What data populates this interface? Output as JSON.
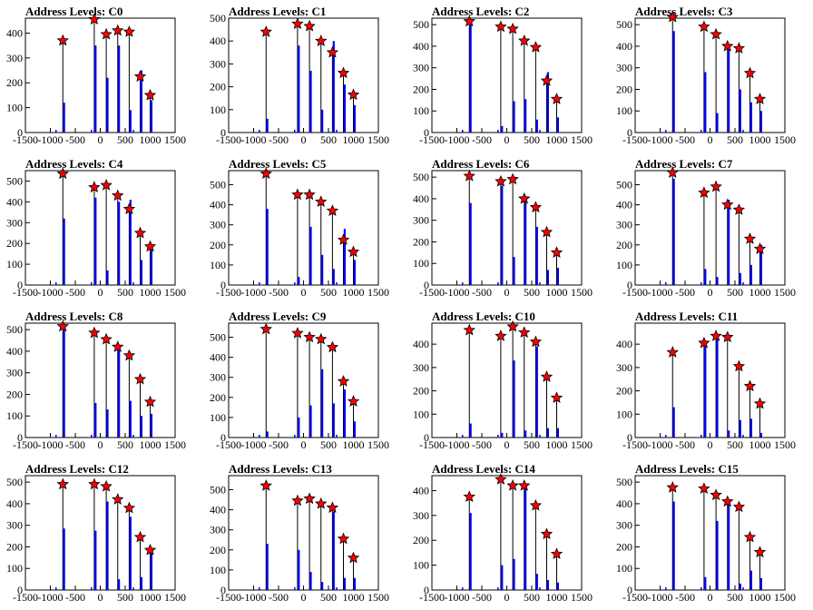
{
  "chart_data": {
    "type": "bar",
    "layout": "4x4 grid of histograms",
    "xlim": [
      -1500,
      1500
    ],
    "x_ticks": [
      -1500,
      -1000,
      -500,
      0,
      500,
      1000,
      1500
    ],
    "peak_x": [
      -750,
      -120,
      120,
      350,
      580,
      800,
      1000
    ],
    "colors": {
      "histogram": "#0000ff",
      "envelope": "#000000",
      "marker": "#ff0000",
      "marker_edge": "#000000"
    },
    "panels": [
      {
        "title": "Address Levels: C0",
        "ylim": [
          0,
          460
        ],
        "y_ticks": [
          0,
          100,
          200,
          300,
          400
        ],
        "peaks": [
          370,
          455,
          395,
          410,
          405,
          225,
          150
        ],
        "heights": [
          120,
          350,
          220,
          350,
          90,
          250,
          130
        ]
      },
      {
        "title": "Address Levels: C1",
        "ylim": [
          0,
          500
        ],
        "y_ticks": [
          0,
          100,
          200,
          300,
          400,
          500
        ],
        "peaks": [
          440,
          475,
          465,
          400,
          350,
          260,
          165
        ],
        "heights": [
          60,
          380,
          270,
          100,
          400,
          210,
          120
        ]
      },
      {
        "title": "Address Levels: C2",
        "ylim": [
          0,
          530
        ],
        "y_ticks": [
          0,
          100,
          200,
          300,
          400,
          500
        ],
        "peaks": [
          515,
          490,
          480,
          425,
          395,
          240,
          155
        ],
        "heights": [
          500,
          30,
          145,
          155,
          60,
          280,
          70
        ]
      },
      {
        "title": "Address Levels: C3",
        "ylim": [
          0,
          530
        ],
        "y_ticks": [
          0,
          100,
          200,
          300,
          400,
          500
        ],
        "peaks": [
          535,
          490,
          455,
          400,
          390,
          275,
          155
        ],
        "heights": [
          470,
          280,
          90,
          400,
          200,
          140,
          100
        ]
      },
      {
        "title": "Address Levels: C4",
        "ylim": [
          0,
          550
        ],
        "y_ticks": [
          0,
          100,
          200,
          300,
          400,
          500
        ],
        "peaks": [
          535,
          470,
          480,
          430,
          365,
          250,
          185
        ],
        "heights": [
          320,
          420,
          70,
          400,
          410,
          120,
          170
        ]
      },
      {
        "title": "Address Levels: C5",
        "ylim": [
          0,
          570
        ],
        "y_ticks": [
          0,
          100,
          200,
          300,
          400,
          500
        ],
        "peaks": [
          555,
          450,
          450,
          415,
          370,
          225,
          165
        ],
        "heights": [
          380,
          40,
          290,
          150,
          80,
          280,
          125
        ]
      },
      {
        "title": "Address Levels: C6",
        "ylim": [
          0,
          530
        ],
        "y_ticks": [
          0,
          100,
          200,
          300,
          400,
          500
        ],
        "peaks": [
          505,
          480,
          490,
          400,
          360,
          245,
          150
        ],
        "heights": [
          380,
          460,
          130,
          410,
          270,
          70,
          80
        ]
      },
      {
        "title": "Address Levels: C7",
        "ylim": [
          0,
          570
        ],
        "y_ticks": [
          0,
          100,
          200,
          300,
          400,
          500
        ],
        "peaks": [
          560,
          460,
          490,
          400,
          375,
          230,
          180
        ],
        "heights": [
          530,
          80,
          40,
          425,
          60,
          100,
          200
        ]
      },
      {
        "title": "Address Levels: C8",
        "ylim": [
          0,
          530
        ],
        "y_ticks": [
          0,
          100,
          200,
          300,
          400,
          500
        ],
        "peaks": [
          515,
          485,
          455,
          420,
          380,
          270,
          165
        ],
        "heights": [
          500,
          160,
          130,
          410,
          170,
          100,
          110
        ]
      },
      {
        "title": "Address Levels: C9",
        "ylim": [
          0,
          570
        ],
        "y_ticks": [
          0,
          100,
          200,
          300,
          400,
          500
        ],
        "peaks": [
          540,
          520,
          500,
          490,
          450,
          280,
          180
        ],
        "heights": [
          30,
          100,
          160,
          340,
          170,
          240,
          80
        ]
      },
      {
        "title": "Address Levels: C10",
        "ylim": [
          0,
          490
        ],
        "y_ticks": [
          0,
          100,
          200,
          300,
          400
        ],
        "peaks": [
          460,
          435,
          475,
          450,
          410,
          260,
          170
        ],
        "heights": [
          60,
          20,
          330,
          30,
          390,
          40,
          40
        ]
      },
      {
        "title": "Address Levels: C11",
        "ylim": [
          0,
          490
        ],
        "y_ticks": [
          0,
          100,
          200,
          300,
          400
        ],
        "peaks": [
          365,
          405,
          435,
          430,
          305,
          220,
          145
        ],
        "heights": [
          130,
          390,
          420,
          30,
          75,
          80,
          20
        ]
      },
      {
        "title": "Address Levels: C12",
        "ylim": [
          0,
          530
        ],
        "y_ticks": [
          0,
          100,
          200,
          300,
          400,
          500
        ],
        "peaks": [
          490,
          490,
          480,
          420,
          380,
          245,
          185
        ],
        "heights": [
          285,
          275,
          410,
          50,
          340,
          60,
          170
        ]
      },
      {
        "title": "Address Levels: C13",
        "ylim": [
          0,
          570
        ],
        "y_ticks": [
          0,
          100,
          200,
          300,
          400,
          500
        ],
        "peaks": [
          520,
          445,
          455,
          430,
          410,
          255,
          160
        ],
        "heights": [
          230,
          200,
          90,
          40,
          390,
          60,
          60
        ]
      },
      {
        "title": "Address Levels: C14",
        "ylim": [
          0,
          460
        ],
        "y_ticks": [
          0,
          100,
          200,
          300,
          400
        ],
        "peaks": [
          375,
          445,
          420,
          420,
          340,
          225,
          145
        ],
        "heights": [
          310,
          100,
          125,
          420,
          65,
          40,
          30
        ]
      },
      {
        "title": "Address Levels: C15",
        "ylim": [
          0,
          530
        ],
        "y_ticks": [
          0,
          100,
          200,
          300,
          400,
          500
        ],
        "peaks": [
          475,
          470,
          440,
          410,
          385,
          245,
          175
        ],
        "heights": [
          410,
          60,
          320,
          400,
          30,
          90,
          55
        ]
      }
    ]
  }
}
